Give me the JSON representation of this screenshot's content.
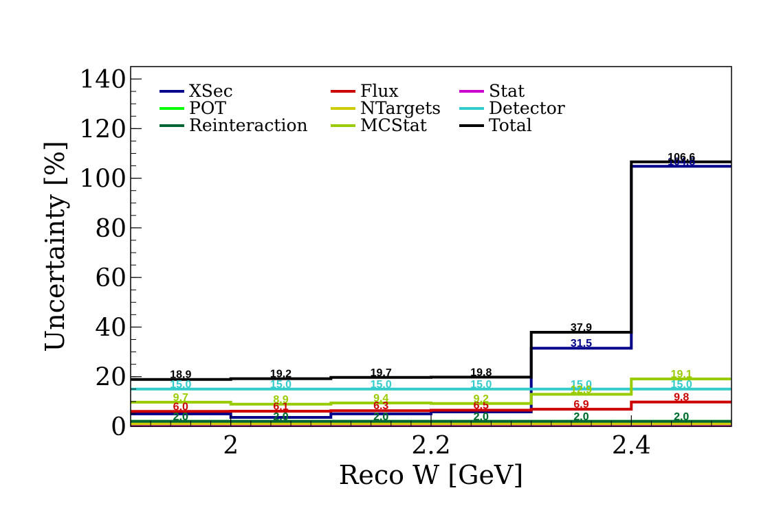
{
  "chart_data": {
    "type": "step",
    "title": "",
    "xlabel": "Reco W [GeV]",
    "ylabel": "Uncertainty [%]",
    "xlim": [
      1.9,
      2.5
    ],
    "ylim": [
      0,
      145
    ],
    "x_ticks": [
      "2",
      "2.2",
      "2.4"
    ],
    "x_tick_values": [
      2.0,
      2.2,
      2.4
    ],
    "y_ticks": [
      "0",
      "20",
      "40",
      "60",
      "80",
      "100",
      "120",
      "140"
    ],
    "y_tick_values": [
      0,
      20,
      40,
      60,
      80,
      100,
      120,
      140
    ],
    "bin_edges": [
      1.9,
      2.0,
      2.1,
      2.2,
      2.3,
      2.4,
      2.5
    ],
    "legend_position": "top-left",
    "series": [
      {
        "name": "XSec",
        "color": "#00008b",
        "values": [
          5.0,
          3.6,
          5.0,
          5.8,
          31.5,
          104.8
        ],
        "labels": [
          "",
          "",
          "",
          "",
          "31.5",
          "104.8"
        ]
      },
      {
        "name": "Flux",
        "color": "#cc0000",
        "values": [
          6.0,
          6.1,
          6.3,
          6.5,
          6.9,
          9.8
        ],
        "labels": [
          "6.0",
          "6.1",
          "6.3",
          "6.5",
          "6.9",
          "9.8"
        ]
      },
      {
        "name": "Stat",
        "color": "#cc00cc",
        "values": [
          0.3,
          0.3,
          0.3,
          0.3,
          0.3,
          0.3
        ],
        "labels": [
          "",
          "",
          "",
          "",
          "",
          ""
        ]
      },
      {
        "name": "POT",
        "color": "#00ff00",
        "values": [
          2.0,
          2.0,
          2.0,
          2.0,
          2.0,
          2.0
        ],
        "labels": [
          "2.0",
          "2.0",
          "2.0",
          "2.0",
          "2.0",
          "2.0"
        ]
      },
      {
        "name": "NTargets",
        "color": "#cccc00",
        "values": [
          1.0,
          1.0,
          1.0,
          1.0,
          1.0,
          1.0
        ],
        "labels": [
          "",
          "",
          "",
          "",
          "",
          ""
        ]
      },
      {
        "name": "Detector",
        "color": "#33cccc",
        "values": [
          15.0,
          15.0,
          15.0,
          15.0,
          15.0,
          15.0
        ],
        "labels": [
          "15.0",
          "15.0",
          "15.0",
          "15.0",
          "15.0",
          "15.0"
        ]
      },
      {
        "name": "Reinteraction",
        "color": "#006633",
        "values": [
          2.0,
          2.0,
          2.0,
          2.0,
          2.0,
          2.0
        ],
        "labels": [
          "2.0",
          "2.0",
          "2.0",
          "2.0",
          "2.0",
          "2.0"
        ]
      },
      {
        "name": "MCStat",
        "color": "#99cc00",
        "values": [
          9.7,
          8.9,
          9.4,
          9.2,
          12.9,
          19.1
        ],
        "labels": [
          "9.7",
          "8.9",
          "9.4",
          "9.2",
          "12.9",
          "19.1"
        ]
      },
      {
        "name": "Total",
        "color": "#000000",
        "values": [
          18.9,
          19.2,
          19.7,
          19.8,
          37.9,
          106.6
        ],
        "labels": [
          "18.9",
          "19.2",
          "19.7",
          "19.8",
          "37.9",
          "106.6"
        ]
      }
    ]
  }
}
